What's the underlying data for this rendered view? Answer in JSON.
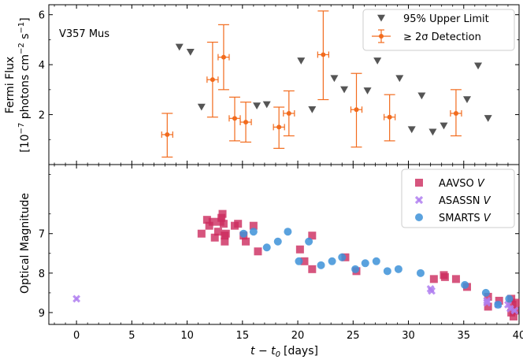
{
  "chart_data": {
    "type": "scatter",
    "xlabel": "t − t",
    "xlabel_sub": "0",
    "xlabel_unit": "[days]",
    "xlim": [
      -2.5,
      40
    ],
    "xticks": [
      0,
      5,
      10,
      15,
      20,
      25,
      30,
      35,
      40
    ],
    "xtick_labels": [
      "0",
      "5",
      "10",
      "15",
      "20",
      "25",
      "30",
      "35",
      "40"
    ],
    "panels": [
      {
        "id": "fermi",
        "annotation": "V357 Mus",
        "ylabel_line1": "Fermi Flux",
        "ylabel_line2_pre": "[10",
        "ylabel_line2_exp1": "−7",
        "ylabel_line2_mid": " photons cm",
        "ylabel_line2_exp2": "−2",
        "ylabel_line2_mid2": " s",
        "ylabel_line2_exp3": "−1",
        "ylabel_line2_post": "]",
        "ylim": [
          0,
          6.4
        ],
        "yticks": [
          2,
          4,
          6
        ],
        "ytick_labels": [
          "2",
          "4",
          "6"
        ],
        "series": [
          {
            "name": "95% Upper Limit",
            "marker": "triangle-down",
            "color": "#555555",
            "points": [
              {
                "x": 9.3,
                "y": 4.7
              },
              {
                "x": 10.3,
                "y": 4.5
              },
              {
                "x": 11.3,
                "y": 2.3
              },
              {
                "x": 16.3,
                "y": 2.35
              },
              {
                "x": 17.2,
                "y": 2.4
              },
              {
                "x": 20.3,
                "y": 4.15
              },
              {
                "x": 21.3,
                "y": 2.2
              },
              {
                "x": 23.3,
                "y": 3.45
              },
              {
                "x": 24.2,
                "y": 3.0
              },
              {
                "x": 26.3,
                "y": 2.95
              },
              {
                "x": 27.2,
                "y": 4.15
              },
              {
                "x": 29.2,
                "y": 3.45
              },
              {
                "x": 30.3,
                "y": 1.4
              },
              {
                "x": 31.2,
                "y": 2.75
              },
              {
                "x": 32.2,
                "y": 1.3
              },
              {
                "x": 33.2,
                "y": 1.55
              },
              {
                "x": 35.3,
                "y": 2.6
              },
              {
                "x": 36.3,
                "y": 3.95
              },
              {
                "x": 37.2,
                "y": 1.85
              }
            ]
          },
          {
            "name": "≥ 2σ Detection",
            "marker": "errorbar-diamond",
            "color": "#f26b1d",
            "points": [
              {
                "x": 8.2,
                "y": 1.2,
                "xerr": 0.5,
                "ylo": 0.3,
                "yhi": 2.05
              },
              {
                "x": 12.3,
                "y": 3.4,
                "xerr": 0.5,
                "ylo": 1.9,
                "yhi": 4.9
              },
              {
                "x": 13.3,
                "y": 4.3,
                "xerr": 0.5,
                "ylo": 3.0,
                "yhi": 5.6
              },
              {
                "x": 14.3,
                "y": 1.85,
                "xerr": 0.5,
                "ylo": 0.95,
                "yhi": 2.7
              },
              {
                "x": 15.3,
                "y": 1.7,
                "xerr": 0.5,
                "ylo": 0.9,
                "yhi": 2.5
              },
              {
                "x": 18.3,
                "y": 1.5,
                "xerr": 0.5,
                "ylo": 0.65,
                "yhi": 2.3
              },
              {
                "x": 19.2,
                "y": 2.05,
                "xerr": 0.5,
                "ylo": 1.15,
                "yhi": 2.95
              },
              {
                "x": 22.3,
                "y": 4.4,
                "xerr": 0.5,
                "ylo": 2.6,
                "yhi": 6.15
              },
              {
                "x": 25.3,
                "y": 2.2,
                "xerr": 0.5,
                "ylo": 0.7,
                "yhi": 3.65
              },
              {
                "x": 28.3,
                "y": 1.9,
                "xerr": 0.5,
                "ylo": 0.95,
                "yhi": 2.8
              },
              {
                "x": 34.3,
                "y": 2.05,
                "xerr": 0.5,
                "ylo": 1.15,
                "yhi": 3.0
              }
            ]
          }
        ],
        "legend": {
          "placement": "top-right",
          "entries": [
            "95% Upper Limit",
            "≥ 2σ Detection"
          ]
        }
      },
      {
        "id": "optical",
        "ylabel": "Optical Magnitude",
        "ylim": [
          9.3,
          5.25
        ],
        "inverted": true,
        "yticks": [
          7,
          8,
          9
        ],
        "ytick_labels": [
          "7",
          "8",
          "9"
        ],
        "series": [
          {
            "name": "AAVSO",
            "name_italic": "V",
            "marker": "square",
            "color": "#cc2a5e",
            "points": [
              {
                "x": 11.3,
                "y": 7.0
              },
              {
                "x": 11.8,
                "y": 6.65
              },
              {
                "x": 12.0,
                "y": 6.8
              },
              {
                "x": 12.3,
                "y": 6.7
              },
              {
                "x": 12.5,
                "y": 7.1
              },
              {
                "x": 12.8,
                "y": 6.95
              },
              {
                "x": 13.0,
                "y": 6.7
              },
              {
                "x": 13.1,
                "y": 6.6
              },
              {
                "x": 13.2,
                "y": 6.5
              },
              {
                "x": 13.3,
                "y": 6.75
              },
              {
                "x": 13.4,
                "y": 7.05
              },
              {
                "x": 13.4,
                "y": 7.2
              },
              {
                "x": 13.5,
                "y": 7.0
              },
              {
                "x": 14.3,
                "y": 6.8
              },
              {
                "x": 14.6,
                "y": 6.75
              },
              {
                "x": 15.1,
                "y": 7.05
              },
              {
                "x": 15.3,
                "y": 7.2
              },
              {
                "x": 16.0,
                "y": 6.8
              },
              {
                "x": 16.4,
                "y": 7.45
              },
              {
                "x": 20.2,
                "y": 7.4
              },
              {
                "x": 20.6,
                "y": 7.7
              },
              {
                "x": 21.3,
                "y": 7.05
              },
              {
                "x": 21.3,
                "y": 7.9
              },
              {
                "x": 24.3,
                "y": 7.6
              },
              {
                "x": 25.3,
                "y": 7.95
              },
              {
                "x": 32.3,
                "y": 8.15
              },
              {
                "x": 33.2,
                "y": 8.05
              },
              {
                "x": 33.3,
                "y": 8.1
              },
              {
                "x": 34.3,
                "y": 8.15
              },
              {
                "x": 35.3,
                "y": 8.35
              },
              {
                "x": 37.2,
                "y": 8.6
              },
              {
                "x": 37.2,
                "y": 8.85
              },
              {
                "x": 38.2,
                "y": 8.7
              },
              {
                "x": 39.3,
                "y": 8.65
              },
              {
                "x": 39.3,
                "y": 9.0
              },
              {
                "x": 39.4,
                "y": 8.8
              },
              {
                "x": 39.5,
                "y": 9.1
              },
              {
                "x": 39.6,
                "y": 8.95
              },
              {
                "x": 39.7,
                "y": 8.75
              }
            ]
          },
          {
            "name": "ASASSN",
            "name_italic": "V",
            "marker": "x",
            "color": "#b07ff0",
            "points": [
              {
                "x": 0.0,
                "y": 8.65
              },
              {
                "x": 32.0,
                "y": 8.4
              },
              {
                "x": 32.1,
                "y": 8.45
              },
              {
                "x": 37.1,
                "y": 8.7
              },
              {
                "x": 37.1,
                "y": 8.75
              },
              {
                "x": 38.1,
                "y": 8.8
              },
              {
                "x": 39.0,
                "y": 8.8
              },
              {
                "x": 39.2,
                "y": 8.9
              },
              {
                "x": 39.6,
                "y": 8.95
              }
            ]
          },
          {
            "name": "SMARTS",
            "name_italic": "V",
            "marker": "circle",
            "color": "#3d92d8",
            "points": [
              {
                "x": 15.1,
                "y": 7.0
              },
              {
                "x": 16.0,
                "y": 6.95
              },
              {
                "x": 17.2,
                "y": 7.35
              },
              {
                "x": 18.2,
                "y": 7.2
              },
              {
                "x": 19.1,
                "y": 6.95
              },
              {
                "x": 20.1,
                "y": 7.7
              },
              {
                "x": 21.0,
                "y": 7.2
              },
              {
                "x": 22.1,
                "y": 7.8
              },
              {
                "x": 23.1,
                "y": 7.7
              },
              {
                "x": 24.0,
                "y": 7.6
              },
              {
                "x": 25.2,
                "y": 7.9
              },
              {
                "x": 26.1,
                "y": 7.75
              },
              {
                "x": 27.1,
                "y": 7.7
              },
              {
                "x": 28.1,
                "y": 7.95
              },
              {
                "x": 29.1,
                "y": 7.9
              },
              {
                "x": 31.1,
                "y": 8.0
              },
              {
                "x": 35.1,
                "y": 8.3
              },
              {
                "x": 37.0,
                "y": 8.5
              },
              {
                "x": 38.1,
                "y": 8.8
              },
              {
                "x": 39.1,
                "y": 8.65
              }
            ]
          }
        ],
        "legend": {
          "placement": "top-right",
          "entries": [
            "AAVSO V",
            "ASASSN V",
            "SMARTS V"
          ]
        }
      }
    ]
  }
}
